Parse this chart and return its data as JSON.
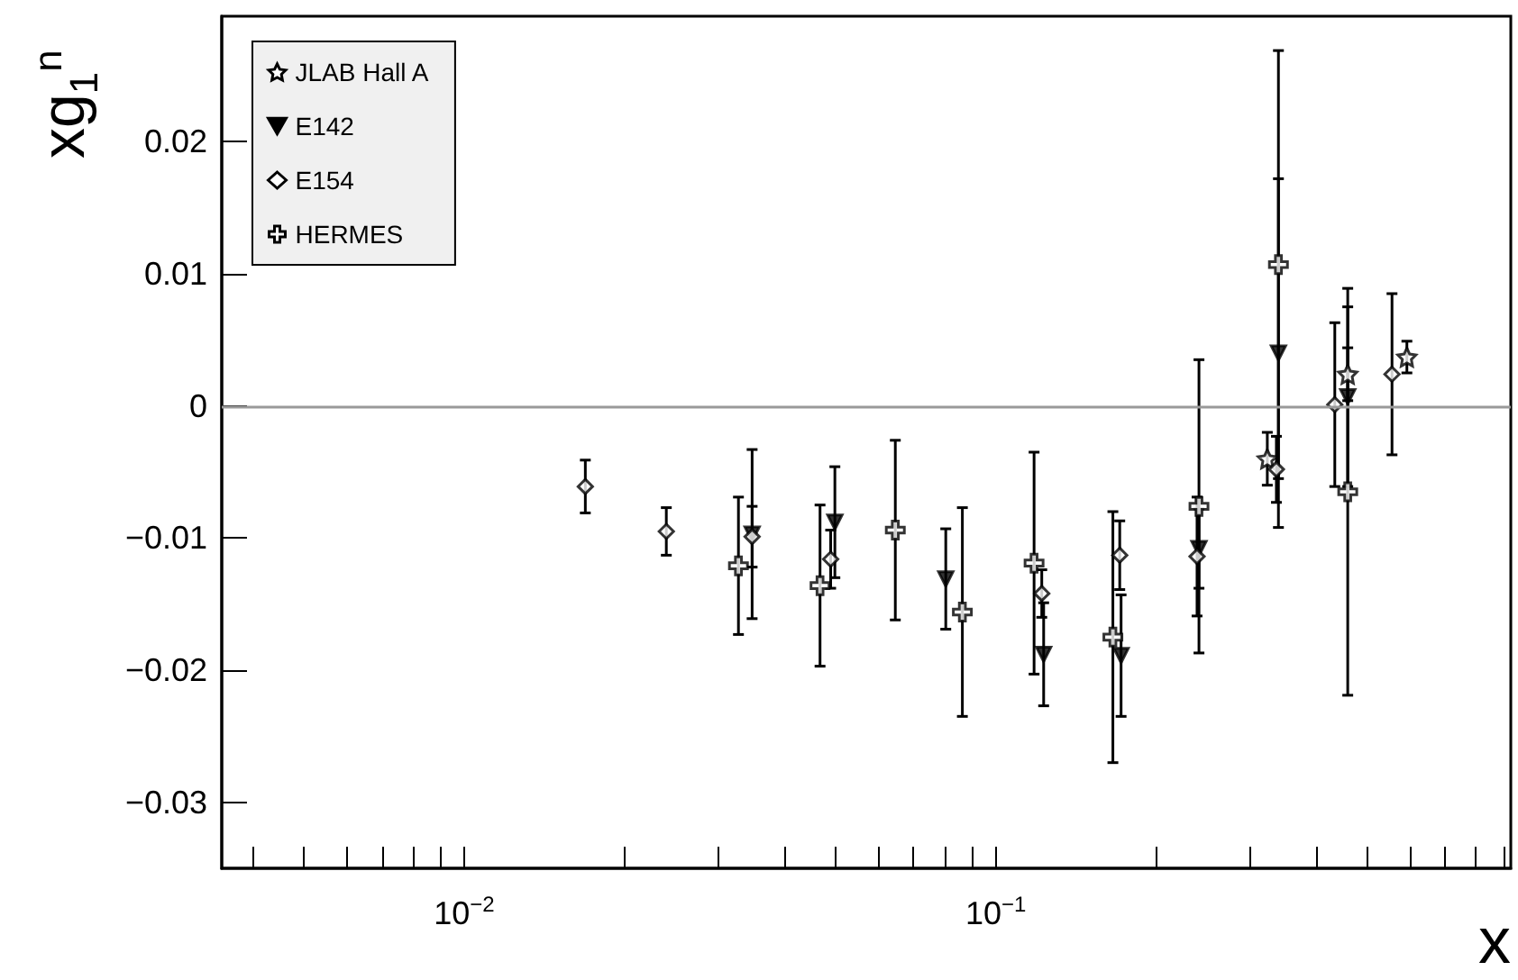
{
  "chart_data": {
    "type": "scatter",
    "xlabel": "x",
    "ylabel": "xg$_{1}$$^{n}$",
    "log": "x",
    "grid": false,
    "legend": "top left",
    "xlim": [
      0.0035,
      0.93
    ],
    "ylim": [
      -0.035,
      0.0295
    ],
    "xticks": [
      {
        "value": 0.004,
        "label": null
      },
      {
        "value": 0.005,
        "label": null
      },
      {
        "value": 0.006,
        "label": null
      },
      {
        "value": 0.007,
        "label": null
      },
      {
        "value": 0.008,
        "label": null
      },
      {
        "value": 0.009,
        "label": null
      },
      {
        "value": 0.01,
        "label": "10$^{−2}$"
      },
      {
        "value": 0.02,
        "label": null
      },
      {
        "value": 0.03,
        "label": null
      },
      {
        "value": 0.04,
        "label": null
      },
      {
        "value": 0.05,
        "label": null
      },
      {
        "value": 0.06,
        "label": null
      },
      {
        "value": 0.07,
        "label": null
      },
      {
        "value": 0.08,
        "label": null
      },
      {
        "value": 0.09,
        "label": null
      },
      {
        "value": 0.1,
        "label": "10$^{−1}$"
      },
      {
        "value": 0.2,
        "label": null
      },
      {
        "value": 0.3,
        "label": null
      },
      {
        "value": 0.4,
        "label": null
      },
      {
        "value": 0.5,
        "label": null
      },
      {
        "value": 0.6,
        "label": null
      },
      {
        "value": 0.7,
        "label": null
      },
      {
        "value": 0.8,
        "label": null
      },
      {
        "value": 0.9,
        "label": null
      }
    ],
    "yticks": [
      {
        "value": -0.03,
        "label": "−0.03"
      },
      {
        "value": -0.02,
        "label": "−0.02"
      },
      {
        "value": -0.01,
        "label": "−0.01"
      },
      {
        "value": 0,
        "label": "0"
      },
      {
        "value": 0.01,
        "label": "0.01"
      },
      {
        "value": 0.02,
        "label": "0.02"
      }
    ],
    "ref_lines": [
      {
        "axis": "y",
        "value": 0,
        "color": "#999999"
      }
    ],
    "series": [
      {
        "name": "JLAB Hall A",
        "color": "#000000",
        "marker": "star",
        "x": [
          0.324,
          0.459,
          0.593
        ],
        "values": [
          -0.004,
          0.0024,
          0.0037
        ],
        "errors": [
          0.002,
          0.002,
          0.0012
        ]
      },
      {
        "name": "E142",
        "color": "#000000",
        "marker": "triangle",
        "x": [
          0.0348,
          0.0498,
          0.0805,
          0.123,
          0.172,
          0.241,
          0.34,
          0.459
        ],
        "values": [
          -0.0097,
          -0.0088,
          -0.0131,
          -0.0188,
          -0.0189,
          -0.0108,
          0.004,
          0.0007
        ],
        "errors": [
          0.0064,
          0.0042,
          0.0038,
          0.0039,
          0.0046,
          0.003,
          0.0132,
          0.0068
        ]
      },
      {
        "name": "E154",
        "color": "#000000",
        "marker": "diamond",
        "x": [
          0.0169,
          0.024,
          0.0348,
          0.0489,
          0.0805,
          0.122,
          0.171,
          0.239,
          0.337,
          0.434,
          0.556
        ],
        "values": [
          -0.0061,
          -0.0095,
          -0.0099,
          -0.0116,
          null,
          -0.0142,
          -0.0113,
          -0.0114,
          -0.0048,
          0.0001,
          0.0024
        ],
        "errors": [
          0.002,
          0.0018,
          0.0023,
          0.0022,
          null,
          0.0018,
          0.0026,
          0.0045,
          0.0025,
          0.0062,
          0.0061
        ]
      },
      {
        "name": "HERMES",
        "color": "#000000",
        "marker": "cross",
        "x": [
          0.0328,
          0.0467,
          0.0647,
          0.0865,
          0.118,
          0.166,
          0.241,
          0.34,
          0.459
        ],
        "values": [
          -0.0121,
          -0.0136,
          -0.0094,
          -0.0156,
          -0.0119,
          -0.0175,
          -0.0076,
          0.0107,
          -0.0065
        ],
        "errors": [
          0.0052,
          0.0061,
          0.0068,
          0.0079,
          0.0084,
          0.0095,
          0.0111,
          0.0162,
          0.0154
        ]
      }
    ]
  }
}
